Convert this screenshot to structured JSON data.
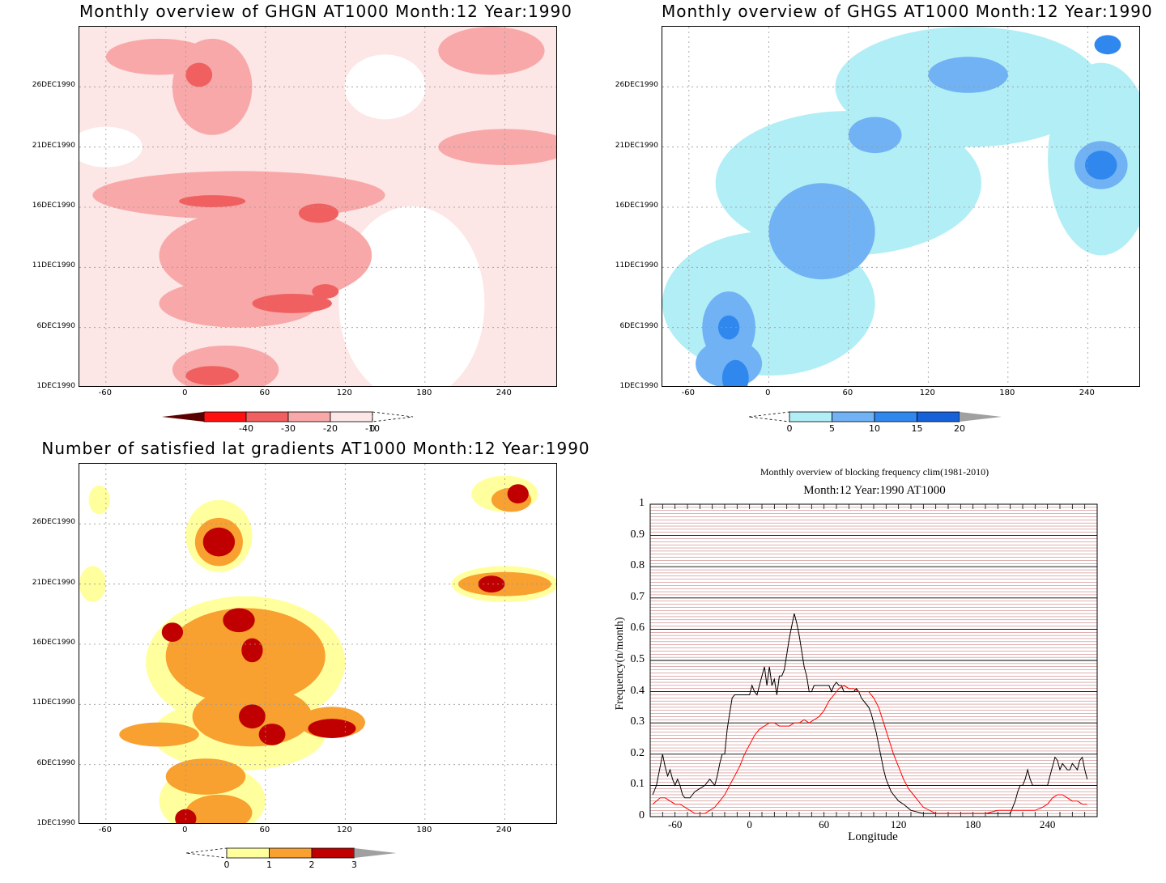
{
  "chart_data": [
    {
      "type": "heatmap",
      "title": "Monthly overview of GHGN AT1000 Month:12 Year:1990",
      "xticks": [
        "-60",
        "0",
        "60",
        "120",
        "180",
        "240"
      ],
      "xtick_values": [
        -60,
        0,
        60,
        120,
        180,
        240
      ],
      "yticks": [
        "1DEC1990",
        "6DEC1990",
        "11DEC1990",
        "16DEC1990",
        "21DEC1990",
        "26DEC1990"
      ],
      "ytick_values": [
        1,
        6,
        11,
        16,
        21,
        26
      ],
      "xlim": [
        -80,
        280
      ],
      "ylim": [
        1,
        31
      ],
      "colorbar": {
        "labels": [
          "-40",
          "-30",
          "-20",
          "-10",
          "0"
        ],
        "colors": [
          "#5a0000",
          "#ff1010",
          "#f06060",
          "#f8a8a8",
          "#fde6e6"
        ]
      },
      "blobs": [
        {
          "x": -20,
          "y": 28.5,
          "rx": 40,
          "ry": 1.5,
          "level": 2
        },
        {
          "x": 20,
          "y": 26,
          "rx": 30,
          "ry": 4,
          "level": 2
        },
        {
          "x": 10,
          "y": 27,
          "rx": 10,
          "ry": 1,
          "level": 3
        },
        {
          "x": 230,
          "y": 29,
          "rx": 40,
          "ry": 2,
          "level": 2
        },
        {
          "x": 240,
          "y": 21,
          "rx": 50,
          "ry": 1.5,
          "level": 2
        },
        {
          "x": 40,
          "y": 17,
          "rx": 110,
          "ry": 2,
          "level": 2
        },
        {
          "x": 60,
          "y": 12,
          "rx": 80,
          "ry": 4,
          "level": 2
        },
        {
          "x": 40,
          "y": 8,
          "rx": 60,
          "ry": 2,
          "level": 2
        },
        {
          "x": 30,
          "y": 2.5,
          "rx": 40,
          "ry": 2,
          "level": 2
        },
        {
          "x": 100,
          "y": 15.5,
          "rx": 15,
          "ry": 0.8,
          "level": 3
        },
        {
          "x": 20,
          "y": 16.5,
          "rx": 25,
          "ry": 0.5,
          "level": 3
        },
        {
          "x": 80,
          "y": 8,
          "rx": 30,
          "ry": 0.8,
          "level": 3
        },
        {
          "x": 20,
          "y": 2,
          "rx": 20,
          "ry": 0.8,
          "level": 3
        },
        {
          "x": 105,
          "y": 9,
          "rx": 10,
          "ry": 0.6,
          "level": 3
        }
      ]
    },
    {
      "type": "heatmap",
      "title": "Monthly overview of GHGS AT1000 Month:12 Year:1990",
      "xticks": [
        "-60",
        "0",
        "60",
        "120",
        "180",
        "240"
      ],
      "xtick_values": [
        -60,
        0,
        60,
        120,
        180,
        240
      ],
      "yticks": [
        "1DEC1990",
        "6DEC1990",
        "11DEC1990",
        "16DEC1990",
        "21DEC1990",
        "26DEC1990"
      ],
      "ytick_values": [
        1,
        6,
        11,
        16,
        21,
        26
      ],
      "xlim": [
        -80,
        280
      ],
      "ylim": [
        1,
        31
      ],
      "colorbar": {
        "labels": [
          "0",
          "5",
          "10",
          "15",
          "20"
        ],
        "colors": [
          "#b2eef6",
          "#70b2f4",
          "#3088ee",
          "#1660d8",
          "#a0a0a0"
        ]
      },
      "blobs": [
        {
          "x": 150,
          "y": 26,
          "rx": 100,
          "ry": 5,
          "level": 1
        },
        {
          "x": 60,
          "y": 18,
          "rx": 100,
          "ry": 6,
          "level": 1
        },
        {
          "x": 0,
          "y": 8,
          "rx": 80,
          "ry": 6,
          "level": 1
        },
        {
          "x": 250,
          "y": 20,
          "rx": 40,
          "ry": 8,
          "level": 1
        },
        {
          "x": 40,
          "y": 14,
          "rx": 40,
          "ry": 4,
          "level": 2
        },
        {
          "x": 150,
          "y": 27,
          "rx": 30,
          "ry": 1.5,
          "level": 2
        },
        {
          "x": 250,
          "y": 19.5,
          "rx": 20,
          "ry": 2,
          "level": 2
        },
        {
          "x": -30,
          "y": 6,
          "rx": 20,
          "ry": 3,
          "level": 2
        },
        {
          "x": 80,
          "y": 22,
          "rx": 20,
          "ry": 1.5,
          "level": 2
        },
        {
          "x": -30,
          "y": 3,
          "rx": 25,
          "ry": 2,
          "level": 2
        },
        {
          "x": -25,
          "y": 1.8,
          "rx": 10,
          "ry": 1.5,
          "level": 3
        },
        {
          "x": 250,
          "y": 19.5,
          "rx": 12,
          "ry": 1.2,
          "level": 3
        },
        {
          "x": 255,
          "y": 29.5,
          "rx": 10,
          "ry": 0.8,
          "level": 3
        },
        {
          "x": -30,
          "y": 6,
          "rx": 8,
          "ry": 1,
          "level": 3
        }
      ]
    },
    {
      "type": "heatmap",
      "title": "Number of satisfied lat gradients AT1000 Month:12 Year:1990",
      "xticks": [
        "-60",
        "0",
        "60",
        "120",
        "180",
        "240"
      ],
      "xtick_values": [
        -60,
        0,
        60,
        120,
        180,
        240
      ],
      "yticks": [
        "1DEC1990",
        "6DEC1990",
        "11DEC1990",
        "16DEC1990",
        "21DEC1990",
        "26DEC1990"
      ],
      "ytick_values": [
        1,
        6,
        11,
        16,
        21,
        26
      ],
      "xlim": [
        -80,
        280
      ],
      "ylim": [
        1,
        31
      ],
      "colorbar": {
        "labels": [
          "0",
          "1",
          "2",
          "3"
        ],
        "colors": [
          "#ffff9e",
          "#f8a030",
          "#c00000",
          "#a0a0a0"
        ]
      },
      "blobs": [
        {
          "x": 45,
          "y": 14.5,
          "rx": 75,
          "ry": 5.5,
          "level": 1
        },
        {
          "x": 40,
          "y": 8.5,
          "rx": 65,
          "ry": 3,
          "level": 1
        },
        {
          "x": 20,
          "y": 3,
          "rx": 40,
          "ry": 3,
          "level": 1
        },
        {
          "x": 25,
          "y": 25,
          "rx": 25,
          "ry": 3,
          "level": 1
        },
        {
          "x": 240,
          "y": 21,
          "rx": 40,
          "ry": 1.5,
          "level": 1
        },
        {
          "x": 240,
          "y": 28.5,
          "rx": 25,
          "ry": 1.5,
          "level": 1
        },
        {
          "x": -65,
          "y": 28,
          "rx": 8,
          "ry": 1.2,
          "level": 1
        },
        {
          "x": -70,
          "y": 21,
          "rx": 10,
          "ry": 1.5,
          "level": 1
        },
        {
          "x": 45,
          "y": 15,
          "rx": 60,
          "ry": 4,
          "level": 2
        },
        {
          "x": 50,
          "y": 10,
          "rx": 45,
          "ry": 2.5,
          "level": 2
        },
        {
          "x": 15,
          "y": 5,
          "rx": 30,
          "ry": 1.5,
          "level": 2
        },
        {
          "x": 25,
          "y": 2,
          "rx": 25,
          "ry": 1.5,
          "level": 2
        },
        {
          "x": 25,
          "y": 24.5,
          "rx": 18,
          "ry": 2,
          "level": 2
        },
        {
          "x": 240,
          "y": 21,
          "rx": 35,
          "ry": 1,
          "level": 2
        },
        {
          "x": 245,
          "y": 28,
          "rx": 15,
          "ry": 1,
          "level": 2
        },
        {
          "x": -20,
          "y": 8.5,
          "rx": 30,
          "ry": 1,
          "level": 2
        },
        {
          "x": 110,
          "y": 9.5,
          "rx": 25,
          "ry": 1.3,
          "level": 2
        },
        {
          "x": 40,
          "y": 18,
          "rx": 12,
          "ry": 1,
          "level": 3
        },
        {
          "x": 50,
          "y": 15.5,
          "rx": 8,
          "ry": 1,
          "level": 3
        },
        {
          "x": 50,
          "y": 10,
          "rx": 10,
          "ry": 1,
          "level": 3
        },
        {
          "x": 65,
          "y": 8.5,
          "rx": 10,
          "ry": 0.9,
          "level": 3
        },
        {
          "x": 110,
          "y": 9,
          "rx": 18,
          "ry": 0.8,
          "level": 3
        },
        {
          "x": 25,
          "y": 24.5,
          "rx": 12,
          "ry": 1.2,
          "level": 3
        },
        {
          "x": 230,
          "y": 21,
          "rx": 10,
          "ry": 0.7,
          "level": 3
        },
        {
          "x": 250,
          "y": 28.5,
          "rx": 8,
          "ry": 0.8,
          "level": 3
        },
        {
          "x": -10,
          "y": 17,
          "rx": 8,
          "ry": 0.8,
          "level": 3
        },
        {
          "x": 0,
          "y": 1.5,
          "rx": 8,
          "ry": 0.8,
          "level": 3
        }
      ]
    },
    {
      "type": "line",
      "title": "Monthly overview of blocking frequency clim(1981-2010)",
      "subtitle": "Month:12 Year:1990  AT1000",
      "xlabel": "Longitude",
      "ylabel": "Frequency(n/month)",
      "xlim": [
        -80,
        280
      ],
      "ylim": [
        0,
        1
      ],
      "xticks": [
        "-60",
        "0",
        "60",
        "120",
        "180",
        "240"
      ],
      "xtick_values": [
        -60,
        0,
        60,
        120,
        180,
        240
      ],
      "yticks": [
        "0",
        "0.1",
        "0.2",
        "0.3",
        "0.4",
        "0.5",
        "0.6",
        "0.7",
        "0.8",
        "0.9",
        "1"
      ],
      "ytick_values": [
        0,
        0.1,
        0.2,
        0.3,
        0.4,
        0.5,
        0.6,
        0.7,
        0.8,
        0.9,
        1
      ],
      "series": [
        {
          "color": "#000000",
          "x": [
            -78,
            -75,
            -72,
            -70,
            -68,
            -66,
            -64,
            -62,
            -60,
            -58,
            -56,
            -54,
            -52,
            -50,
            -48,
            -46,
            -44,
            -40,
            -36,
            -32,
            -28,
            -26,
            -24,
            -22,
            -20,
            -18,
            -16,
            -14,
            -12,
            -10,
            -8,
            -6,
            -4,
            -2,
            0,
            2,
            4,
            6,
            8,
            10,
            12,
            14,
            16,
            18,
            20,
            22,
            24,
            26,
            28,
            30,
            32,
            34,
            36,
            38,
            40,
            42,
            44,
            46,
            48,
            50,
            52,
            54,
            56,
            58,
            60,
            62,
            64,
            66,
            68,
            70,
            72,
            74,
            76,
            78,
            80,
            82,
            84,
            86,
            88,
            90,
            92,
            94,
            96,
            98,
            100,
            102,
            104,
            106,
            108,
            110,
            112,
            114,
            116,
            118,
            120,
            124,
            130,
            140,
            150,
            160,
            170,
            180,
            190,
            200,
            206,
            210,
            212,
            214,
            216,
            218,
            220,
            222,
            224,
            226,
            228,
            230,
            232,
            234,
            236,
            238,
            240,
            242,
            244,
            246,
            248,
            250,
            252,
            254,
            256,
            258,
            260,
            262,
            264,
            266,
            268,
            270,
            272
          ],
          "y": [
            0.07,
            0.1,
            0.16,
            0.2,
            0.16,
            0.13,
            0.15,
            0.12,
            0.1,
            0.12,
            0.1,
            0.07,
            0.06,
            0.06,
            0.06,
            0.07,
            0.08,
            0.09,
            0.1,
            0.12,
            0.1,
            0.13,
            0.17,
            0.2,
            0.2,
            0.28,
            0.33,
            0.38,
            0.39,
            0.39,
            0.39,
            0.39,
            0.39,
            0.39,
            0.39,
            0.42,
            0.4,
            0.39,
            0.42,
            0.45,
            0.48,
            0.42,
            0.48,
            0.42,
            0.44,
            0.39,
            0.45,
            0.45,
            0.47,
            0.52,
            0.57,
            0.61,
            0.65,
            0.62,
            0.58,
            0.53,
            0.48,
            0.45,
            0.4,
            0.4,
            0.42,
            0.42,
            0.42,
            0.42,
            0.42,
            0.42,
            0.42,
            0.4,
            0.42,
            0.43,
            0.42,
            0.42,
            0.4,
            0.4,
            0.4,
            0.4,
            0.4,
            0.41,
            0.4,
            0.38,
            0.37,
            0.36,
            0.35,
            0.33,
            0.3,
            0.27,
            0.23,
            0.19,
            0.15,
            0.12,
            0.1,
            0.08,
            0.07,
            0.06,
            0.05,
            0.04,
            0.02,
            0.01,
            0.01,
            0.01,
            0.01,
            0.01,
            0.01,
            0.01,
            0.01,
            0.01,
            0.03,
            0.05,
            0.08,
            0.1,
            0.1,
            0.12,
            0.15,
            0.12,
            0.1,
            0.1,
            0.1,
            0.1,
            0.1,
            0.1,
            0.1,
            0.13,
            0.16,
            0.19,
            0.18,
            0.15,
            0.17,
            0.16,
            0.15,
            0.15,
            0.17,
            0.16,
            0.15,
            0.18,
            0.19,
            0.15,
            0.12
          ]
        },
        {
          "color": "#ff0000",
          "x": [
            -78,
            -75,
            -72,
            -68,
            -64,
            -60,
            -56,
            -52,
            -48,
            -44,
            -40,
            -36,
            -32,
            -28,
            -24,
            -20,
            -16,
            -12,
            -8,
            -4,
            0,
            4,
            8,
            12,
            16,
            20,
            24,
            28,
            32,
            36,
            40,
            44,
            48,
            52,
            56,
            60,
            64,
            68,
            72,
            76,
            80,
            84,
            88,
            92,
            96,
            100,
            104,
            108,
            112,
            116,
            120,
            124,
            128,
            132,
            136,
            140,
            150,
            160,
            170,
            180,
            190,
            200,
            210,
            220,
            230,
            236,
            240,
            244,
            248,
            252,
            256,
            260,
            264,
            268,
            272
          ],
          "y": [
            0.04,
            0.05,
            0.06,
            0.06,
            0.05,
            0.04,
            0.04,
            0.03,
            0.02,
            0.01,
            0.01,
            0.01,
            0.02,
            0.03,
            0.05,
            0.07,
            0.1,
            0.13,
            0.16,
            0.2,
            0.23,
            0.26,
            0.28,
            0.29,
            0.3,
            0.3,
            0.29,
            0.29,
            0.29,
            0.3,
            0.3,
            0.31,
            0.3,
            0.31,
            0.32,
            0.34,
            0.37,
            0.39,
            0.41,
            0.42,
            0.41,
            0.41,
            0.4,
            0.4,
            0.4,
            0.38,
            0.35,
            0.3,
            0.25,
            0.2,
            0.16,
            0.12,
            0.09,
            0.07,
            0.05,
            0.03,
            0.01,
            0.01,
            0.01,
            0.01,
            0.01,
            0.02,
            0.02,
            0.02,
            0.02,
            0.03,
            0.04,
            0.06,
            0.07,
            0.07,
            0.06,
            0.05,
            0.05,
            0.04,
            0.04
          ]
        }
      ]
    }
  ]
}
